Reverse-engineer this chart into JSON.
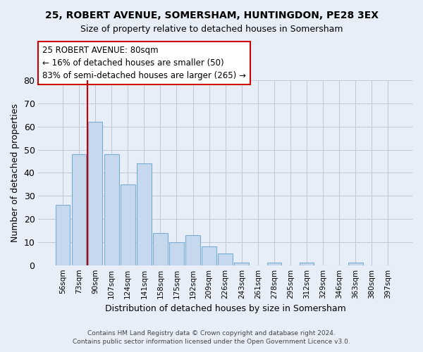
{
  "title1": "25, ROBERT AVENUE, SOMERSHAM, HUNTINGDON, PE28 3EX",
  "title2": "Size of property relative to detached houses in Somersham",
  "xlabel": "Distribution of detached houses by size in Somersham",
  "ylabel": "Number of detached properties",
  "categories": [
    "56sqm",
    "73sqm",
    "90sqm",
    "107sqm",
    "124sqm",
    "141sqm",
    "158sqm",
    "175sqm",
    "192sqm",
    "209sqm",
    "226sqm",
    "243sqm",
    "261sqm",
    "278sqm",
    "295sqm",
    "312sqm",
    "329sqm",
    "346sqm",
    "363sqm",
    "380sqm",
    "397sqm"
  ],
  "values": [
    26,
    48,
    62,
    48,
    35,
    44,
    14,
    10,
    13,
    8,
    5,
    1,
    0,
    1,
    0,
    1,
    0,
    0,
    1,
    0,
    0
  ],
  "bar_color": "#c5d8ee",
  "bar_edge_color": "#7aafd4",
  "marker_line_color": "#cc0000",
  "annotation_title": "25 ROBERT AVENUE: 80sqm",
  "annotation_line1": "← 16% of detached houses are smaller (50)",
  "annotation_line2": "83% of semi-detached houses are larger (265) →",
  "annotation_box_color": "#ffffff",
  "annotation_box_edge": "#cc0000",
  "ylim": [
    0,
    80
  ],
  "yticks": [
    0,
    10,
    20,
    30,
    40,
    50,
    60,
    70,
    80
  ],
  "footer1": "Contains HM Land Registry data © Crown copyright and database right 2024.",
  "footer2": "Contains public sector information licensed under the Open Government Licence v3.0.",
  "bg_color": "#e8eef8",
  "plot_bg_color": "#e8eef8",
  "grid_color": "#c0c8d8"
}
